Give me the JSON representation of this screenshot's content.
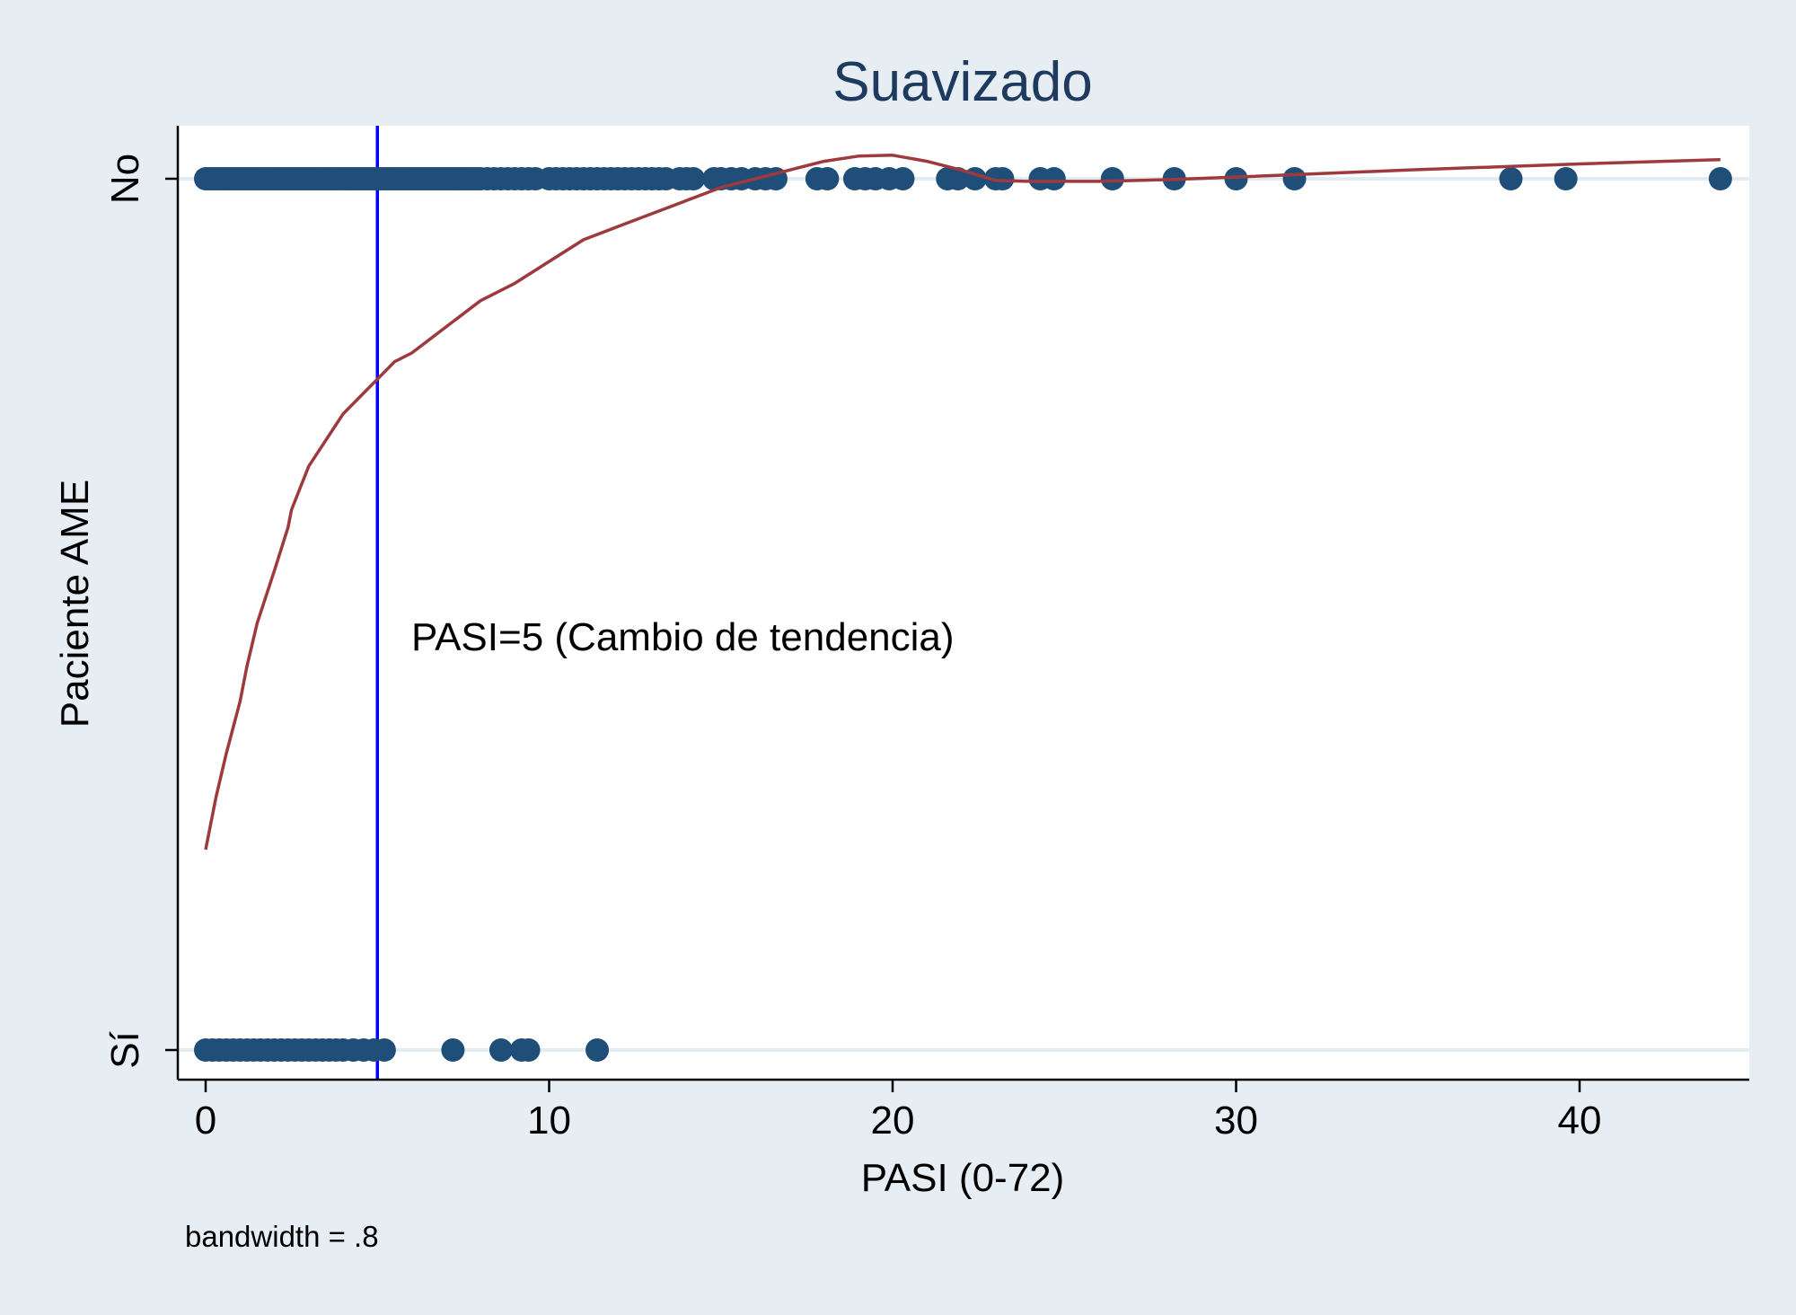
{
  "chart_data": {
    "type": "scatter",
    "title": "Suavizado",
    "xlabel": "PASI (0-72)",
    "ylabel": "Paciente AME",
    "xlim": [
      -0.9,
      45
    ],
    "x_ticks": [
      0,
      10,
      20,
      30,
      40
    ],
    "y_categories": [
      "Sí",
      "No"
    ],
    "y_values": {
      "Sí": 1,
      "No": 0
    },
    "grid": "horizontal at category levels",
    "note": "bandwidth = .8",
    "annotation": {
      "text": "PASI=5 (Cambio de tendencia)",
      "reference_x": 5
    },
    "colors": {
      "background": "#e7eef3",
      "plot_area": "#ffffff",
      "points": "#1f4e79",
      "smoother": "#9e3a3e",
      "reference_line": "#0000ff",
      "title": "#1f3a5f",
      "grid": "#e2ebf0"
    },
    "points_no": [
      0,
      0.1,
      0.2,
      0.3,
      0.4,
      0.5,
      0.6,
      0.7,
      0.8,
      0.9,
      1.0,
      1.1,
      1.2,
      1.3,
      1.4,
      1.5,
      1.6,
      1.7,
      1.8,
      1.9,
      2.0,
      2.1,
      2.2,
      2.3,
      2.4,
      2.5,
      2.6,
      2.7,
      2.8,
      2.9,
      3.0,
      3.1,
      3.2,
      3.3,
      3.4,
      3.5,
      3.6,
      3.7,
      3.8,
      3.9,
      4.0,
      4.1,
      4.2,
      4.3,
      4.4,
      4.5,
      4.6,
      4.7,
      4.8,
      4.9,
      5.0,
      5.1,
      5.2,
      5.3,
      5.4,
      5.5,
      5.6,
      5.7,
      5.8,
      5.9,
      6.0,
      6.1,
      6.2,
      6.3,
      6.4,
      6.5,
      6.6,
      6.7,
      6.8,
      6.9,
      7.0,
      7.1,
      7.2,
      7.3,
      7.4,
      7.5,
      7.6,
      7.7,
      7.8,
      7.9,
      8.0,
      8.2,
      8.4,
      8.6,
      8.8,
      9.0,
      9.2,
      9.4,
      9.6,
      10.0,
      10.2,
      10.4,
      10.6,
      10.8,
      11.0,
      11.2,
      11.4,
      11.6,
      11.8,
      12.0,
      12.2,
      12.4,
      12.6,
      12.8,
      13.0,
      13.2,
      13.4,
      13.8,
      14.0,
      14.2,
      14.8,
      15.0,
      15.3,
      15.6,
      16.0,
      16.3,
      16.6,
      17.8,
      18.1,
      18.9,
      19.2,
      19.5,
      19.9,
      20.3,
      21.6,
      21.9,
      22.4,
      23.0,
      23.2,
      24.3,
      24.7,
      26.4,
      28.2,
      30.0,
      31.7,
      38.0,
      39.6,
      44.1
    ],
    "points_si": [
      0,
      0.2,
      0.4,
      0.6,
      0.8,
      1.0,
      1.2,
      1.4,
      1.6,
      1.8,
      2.0,
      2.2,
      2.4,
      2.6,
      2.8,
      3.0,
      3.2,
      3.4,
      3.6,
      3.8,
      4.0,
      4.3,
      4.6,
      4.9,
      5.2,
      7.2,
      8.6,
      9.2,
      9.4,
      11.4
    ],
    "smoother": [
      [
        0,
        0.77
      ],
      [
        0.3,
        0.71
      ],
      [
        0.6,
        0.66
      ],
      [
        1.0,
        0.6
      ],
      [
        1.2,
        0.56
      ],
      [
        1.5,
        0.51
      ],
      [
        2.0,
        0.45
      ],
      [
        2.4,
        0.4
      ],
      [
        2.5,
        0.38
      ],
      [
        2.8,
        0.35
      ],
      [
        3.0,
        0.33
      ],
      [
        3.5,
        0.3
      ],
      [
        4.0,
        0.27
      ],
      [
        4.5,
        0.25
      ],
      [
        5.0,
        0.23
      ],
      [
        5.5,
        0.21
      ],
      [
        6.0,
        0.2
      ],
      [
        7.0,
        0.17
      ],
      [
        8.0,
        0.14
      ],
      [
        9.0,
        0.12
      ],
      [
        10.0,
        0.095
      ],
      [
        11.0,
        0.07
      ],
      [
        12.0,
        0.055
      ],
      [
        13.0,
        0.04
      ],
      [
        14.0,
        0.025
      ],
      [
        15.0,
        0.01
      ],
      [
        16.0,
        0.0
      ],
      [
        17.0,
        -0.01
      ],
      [
        18.0,
        -0.02
      ],
      [
        19.0,
        -0.026
      ],
      [
        20.0,
        -0.027
      ],
      [
        21.0,
        -0.02
      ],
      [
        22.0,
        -0.01
      ],
      [
        23.0,
        0.002
      ],
      [
        24.0,
        0.003
      ],
      [
        26.0,
        0.003
      ],
      [
        28.0,
        0.001
      ],
      [
        30.0,
        -0.002
      ],
      [
        35.0,
        -0.01
      ],
      [
        40.0,
        -0.017
      ],
      [
        44.1,
        -0.022
      ]
    ]
  }
}
